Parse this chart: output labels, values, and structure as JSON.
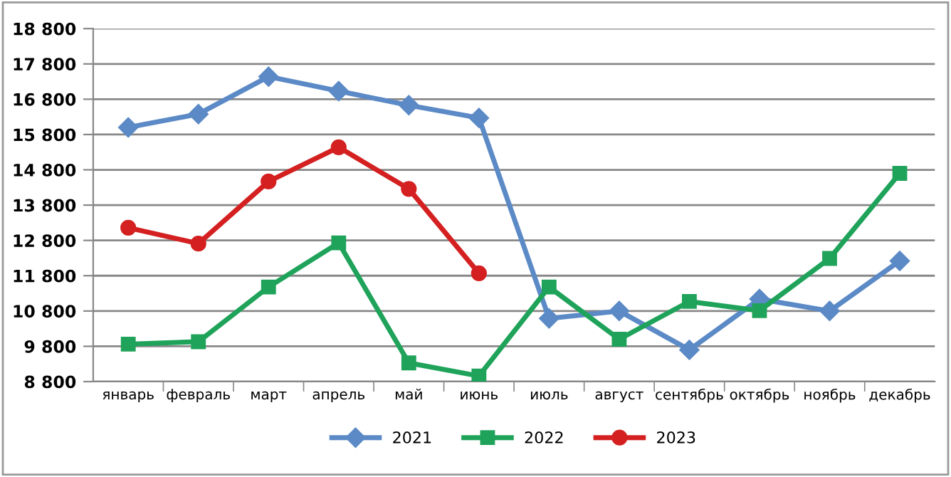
{
  "chart_data": {
    "type": "line",
    "categories": [
      "январь",
      "февраль",
      "март",
      "апрель",
      "май",
      "июнь",
      "июль",
      "август",
      "сентябрь",
      "октябрь",
      "ноябрь",
      "декабрь"
    ],
    "series": [
      {
        "name": "2021",
        "color": "#5b8ac6",
        "marker": "diamond",
        "values": [
          16000,
          16380,
          17440,
          17030,
          16630,
          16270,
          10590,
          10800,
          9700,
          11140,
          10800,
          12220
        ]
      },
      {
        "name": "2022",
        "color": "#1fa35a",
        "marker": "square",
        "values": [
          9860,
          9930,
          11480,
          12730,
          9330,
          8960,
          11480,
          10000,
          11070,
          10810,
          12290,
          14700
        ]
      },
      {
        "name": "2023",
        "color": "#d42020",
        "marker": "circle",
        "values": [
          13160,
          12710,
          14470,
          15440,
          14260,
          11870,
          null,
          null,
          null,
          null,
          null,
          null
        ]
      }
    ],
    "ylim": [
      8800,
      18800
    ],
    "yticks": [
      {
        "value": 8800,
        "label": "8 800"
      },
      {
        "value": 9800,
        "label": "9 800"
      },
      {
        "value": 10800,
        "label": "10 800"
      },
      {
        "value": 11800,
        "label": "11 800"
      },
      {
        "value": 12800,
        "label": "12 800"
      },
      {
        "value": 13800,
        "label": "13 800"
      },
      {
        "value": 14800,
        "label": "14 800"
      },
      {
        "value": 15800,
        "label": "15 800"
      },
      {
        "value": 16800,
        "label": "16 800"
      },
      {
        "value": 17800,
        "label": "17 800"
      },
      {
        "value": 18800,
        "label": "18 800"
      }
    ],
    "grid": "y",
    "legend": "bottom",
    "line_style": "solid"
  }
}
